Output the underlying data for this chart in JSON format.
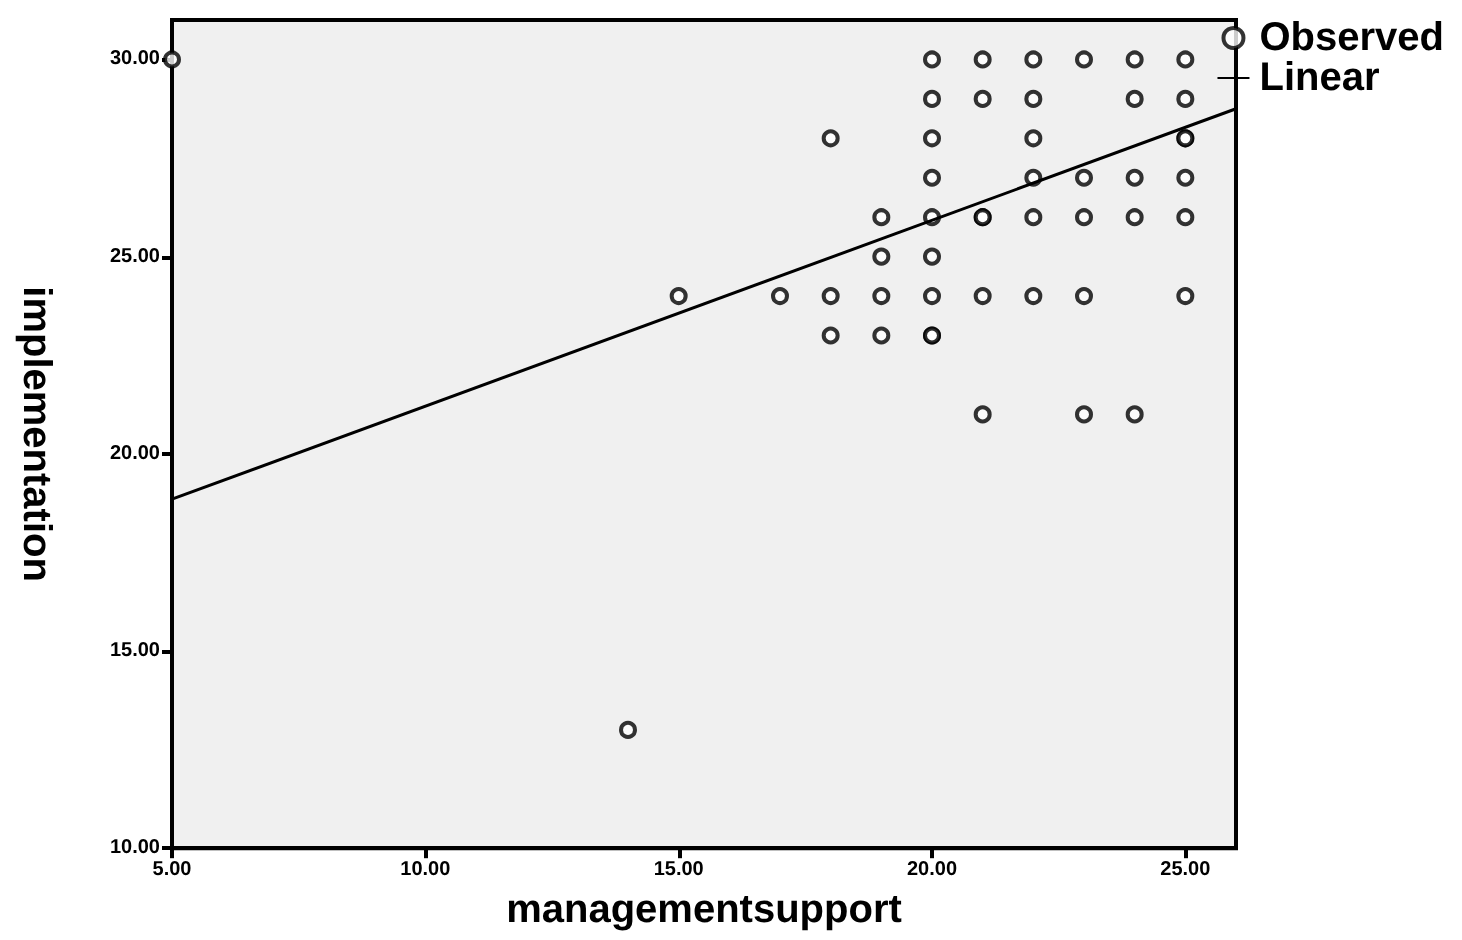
{
  "chart_data": {
    "type": "scatter",
    "xlabel": "managementsupport",
    "ylabel": "implementation",
    "xlim": [
      5,
      26
    ],
    "ylim": [
      10,
      31
    ],
    "xticks": [
      {
        "value": 5,
        "label": "5.00"
      },
      {
        "value": 10,
        "label": "10.00"
      },
      {
        "value": 15,
        "label": "15.00"
      },
      {
        "value": 20,
        "label": "20.00"
      },
      {
        "value": 25,
        "label": "25.00"
      }
    ],
    "yticks": [
      {
        "value": 10,
        "label": "10.00"
      },
      {
        "value": 15,
        "label": "15.00"
      },
      {
        "value": 20,
        "label": "20.00"
      },
      {
        "value": 25,
        "label": "25.00"
      },
      {
        "value": 30,
        "label": "30.00"
      }
    ],
    "grid": false,
    "legend": "top right",
    "series": [
      {
        "name": "Observed",
        "marker": "circle",
        "color": "#000000",
        "x": [
          5,
          14,
          15,
          17,
          18,
          18,
          18,
          19,
          19,
          19,
          19,
          20,
          20,
          20,
          20,
          20,
          20,
          20,
          20,
          20,
          21,
          21,
          21,
          21,
          21,
          21,
          22,
          22,
          22,
          22,
          22,
          22,
          23,
          23,
          23,
          23,
          23,
          24,
          24,
          24,
          24,
          24,
          25,
          25,
          25,
          25,
          25,
          25,
          25
        ],
        "values": [
          30,
          13,
          24,
          24,
          28,
          24,
          23,
          26,
          25,
          24,
          23,
          30,
          29,
          28,
          27,
          26,
          25,
          24,
          23,
          23,
          30,
          29,
          26,
          24,
          21,
          26,
          30,
          29,
          28,
          27,
          26,
          24,
          30,
          27,
          26,
          24,
          21,
          30,
          29,
          27,
          26,
          21,
          30,
          29,
          28,
          27,
          26,
          24,
          28
        ]
      },
      {
        "name": "Linear",
        "type": "line",
        "marker": "none",
        "color": "#000000",
        "line_style": "solid",
        "x": [
          5,
          26
        ],
        "values": [
          18.85,
          28.75
        ]
      }
    ]
  }
}
